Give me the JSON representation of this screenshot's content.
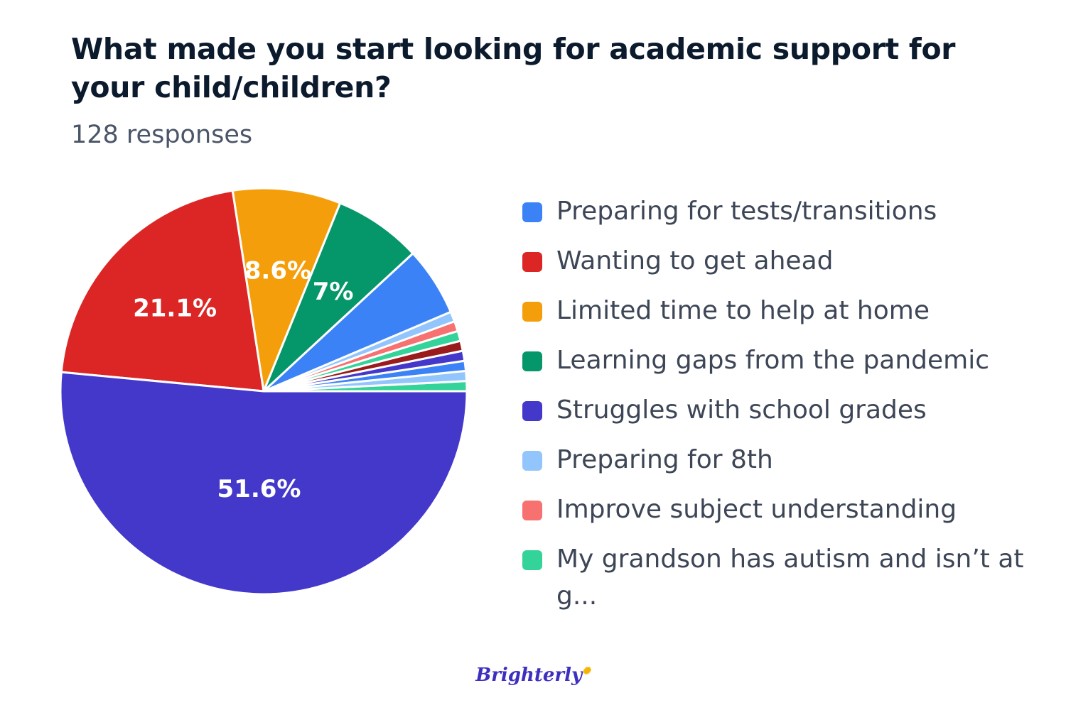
{
  "header": {
    "title": "What made you start looking for academic support for your child/children?",
    "subtitle": "128 responses"
  },
  "brand": {
    "logo": "Brighterly"
  },
  "chart_data": {
    "type": "pie",
    "title": "What made you start looking for academic support for your child/children?",
    "start": "3 o'clock, counter-clockwise",
    "slices": [
      {
        "label": "",
        "value": 0.8,
        "color": "#34d399",
        "data_label": ""
      },
      {
        "label": "",
        "value": 0.8,
        "color": "#93c5fd",
        "data_label": ""
      },
      {
        "label": "",
        "value": 0.8,
        "color": "#3b82f6",
        "data_label": ""
      },
      {
        "label": "",
        "value": 0.8,
        "color": "#4338ca",
        "data_label": ""
      },
      {
        "label": "",
        "value": 0.8,
        "color": "#991b1b",
        "data_label": ""
      },
      {
        "label": "",
        "value": 0.8,
        "color": "#34d399",
        "data_label": ""
      },
      {
        "label": "",
        "value": 0.8,
        "color": "#f87171",
        "data_label": ""
      },
      {
        "label": "",
        "value": 0.8,
        "color": "#93c5fd",
        "data_label": ""
      },
      {
        "label": "Preparing for tests/transitions",
        "value": 5.5,
        "color": "#3b82f6",
        "data_label": ""
      },
      {
        "label": "Learning gaps from the pandemic",
        "value": 7.0,
        "color": "#059669",
        "data_label": "7%"
      },
      {
        "label": "Limited time to help at home",
        "value": 8.6,
        "color": "#f59e0b",
        "data_label": "8.6%"
      },
      {
        "label": "Wanting to get ahead",
        "value": 21.1,
        "color": "#dc2626",
        "data_label": "21.1%"
      },
      {
        "label": "Struggles with school grades",
        "value": 51.6,
        "color": "#4338ca",
        "data_label": "51.6%"
      }
    ],
    "legend": {
      "placement": "right",
      "items": [
        {
          "label": "Preparing for tests/transitions",
          "color": "#3b82f6"
        },
        {
          "label": "Wanting to get ahead",
          "color": "#dc2626"
        },
        {
          "label": "Limited time to help at home",
          "color": "#f59e0b"
        },
        {
          "label": "Learning gaps from the pandemic",
          "color": "#059669"
        },
        {
          "label": "Struggles with school grades",
          "color": "#4338ca"
        },
        {
          "label": "Preparing for 8th",
          "color": "#93c5fd"
        },
        {
          "label": "Improve subject understanding",
          "color": "#f87171"
        },
        {
          "label": "My grandson has autism and isn’t at g...",
          "color": "#34d399"
        }
      ]
    }
  }
}
